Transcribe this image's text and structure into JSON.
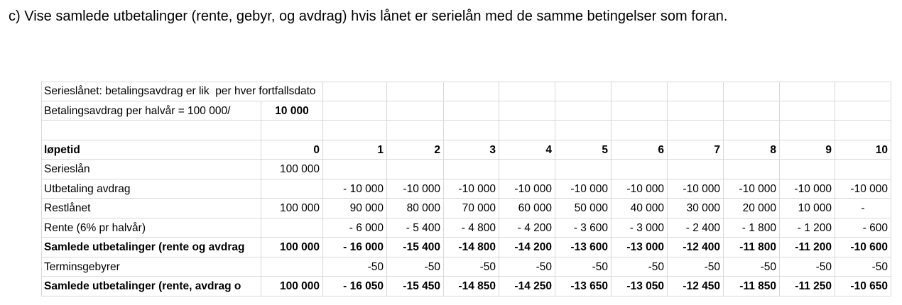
{
  "heading": "c) Vise samlede utbetalinger (rente, gebyr, og avdrag) hvis lånet er serielån med de samme betingelser som foran.",
  "table": {
    "rows": [
      [
        "Serieslånet: betalingsavdrag er lik  per hver fortfallsdato",
        null,
        null,
        null,
        null,
        null,
        null,
        null,
        null,
        null,
        null,
        null
      ],
      [
        "Betalingsavdrag per halvår = 100 000/",
        "10 000",
        null,
        null,
        null,
        null,
        null,
        null,
        null,
        null,
        null,
        null
      ],
      [
        null,
        null,
        null,
        null,
        null,
        null,
        null,
        null,
        null,
        null,
        null,
        null
      ],
      [
        "løpetid",
        "0",
        "1",
        "2",
        "3",
        "4",
        "5",
        "6",
        "7",
        "8",
        "9",
        "10"
      ],
      [
        "Serieslån",
        "100 000",
        null,
        null,
        null,
        null,
        null,
        null,
        null,
        null,
        null,
        null
      ],
      [
        "Utbetaling avdrag",
        null,
        "- 10 000",
        "-10 000",
        "-10 000",
        "-10 000",
        "-10 000",
        "-10 000",
        "-10 000",
        "-10 000",
        "-10 000",
        "-10 000"
      ],
      [
        "Restlånet",
        "100 000",
        "90 000",
        "80 000",
        "70 000",
        "60 000",
        "50 000",
        "40 000",
        "30 000",
        "20 000",
        "10 000",
        "-"
      ],
      [
        "Rente (6% pr halvår)",
        null,
        "- 6 000",
        "- 5 400",
        "- 4 800",
        "- 4 200",
        "- 3 600",
        "- 3 000",
        "- 2 400",
        "- 1 800",
        "- 1 200",
        "- 600"
      ],
      [
        "Samlede utbetalinger (rente og avdrag",
        "100 000",
        "- 16 000",
        "-15 400",
        "-14 800",
        "-14 200",
        "-13 600",
        "-13 000",
        "-12 400",
        "-11 800",
        "-11 200",
        "-10 600"
      ],
      [
        "Terminsgebyrer",
        null,
        "-50",
        "-50",
        "-50",
        "-50",
        "-50",
        "-50",
        "-50",
        "-50",
        "-50",
        "-50"
      ],
      [
        "Samlede utbetalinger (rente, avdrag o",
        "100 000",
        "- 16 050",
        "-15 450",
        "-14 850",
        "-14 250",
        "-13 650",
        "-13 050",
        "-12 450",
        "-11 850",
        "-11 250",
        "-10 650"
      ]
    ]
  }
}
